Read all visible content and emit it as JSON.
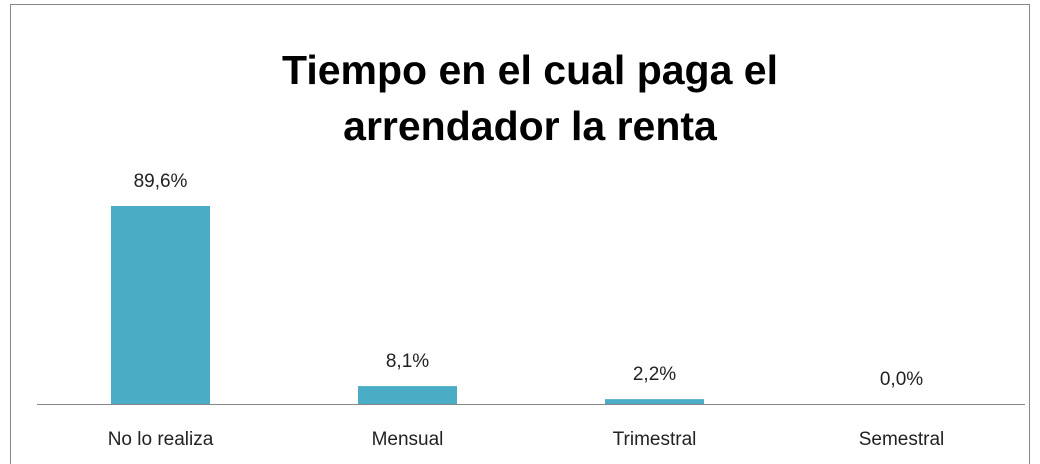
{
  "chart_data": {
    "type": "bar",
    "title": "Tiempo en el cual paga el arrendador la renta",
    "categories": [
      "No lo realiza",
      "Mensual",
      "Trimestral",
      "Semestral"
    ],
    "values": [
      89.6,
      8.1,
      2.2,
      0.0
    ],
    "value_labels": [
      "89,6%",
      "8,1%",
      "2,2%",
      "0,0%"
    ],
    "color": "#4bacc6"
  }
}
